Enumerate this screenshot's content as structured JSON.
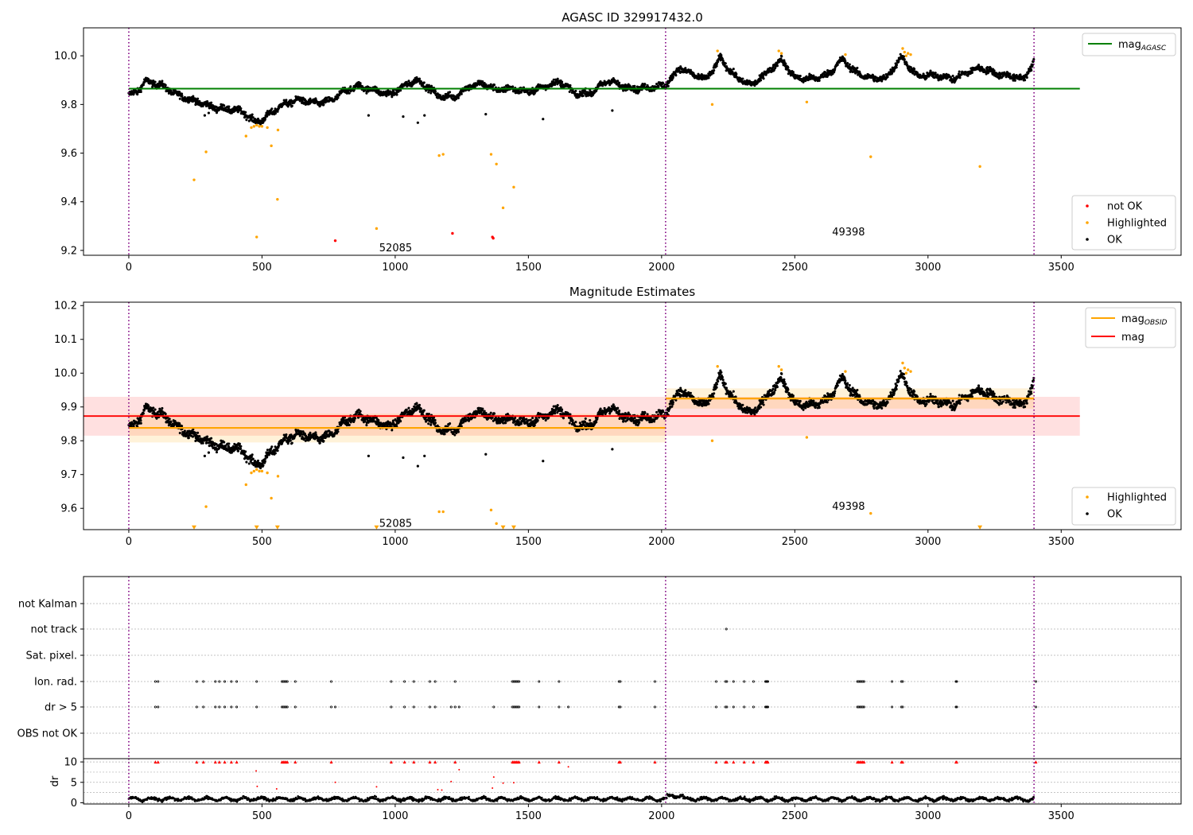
{
  "chart_data": [
    {
      "type": "scatter",
      "title": "AGASC ID 329917432.0",
      "xlabel": "",
      "ylabel": "",
      "xlim": [
        -170,
        3950
      ],
      "ylim": [
        9.18,
        10.115
      ],
      "xticks": [
        0,
        500,
        1000,
        1500,
        2000,
        2500,
        3000,
        3500
      ],
      "yticks": [
        9.2,
        9.4,
        9.6,
        9.8,
        10.0
      ],
      "ytick_labels": [
        "9.2",
        "9.4",
        "9.6",
        "9.8",
        "10.0"
      ],
      "grid": false,
      "obs_boundaries": [
        0,
        2015,
        3398
      ],
      "annotations": [
        {
          "text": "52085",
          "x": 940,
          "y": 9.21
        },
        {
          "text": "49398",
          "x": 2640,
          "y": 9.275
        }
      ],
      "reference_lines": [
        {
          "name": "mag",
          "name_sub": "AGASC",
          "y": 9.865,
          "x_range": [
            0,
            3570
          ],
          "color": "#008000"
        }
      ],
      "legends": [
        {
          "placement": "top-right",
          "entries": [
            {
              "label": "mag",
              "sub": "AGASC",
              "kind": "line",
              "color": "#008000"
            }
          ]
        },
        {
          "placement": "lower-right",
          "entries": [
            {
              "label": "not OK",
              "kind": "dot",
              "color": "#ff0000"
            },
            {
              "label": "Highlighted",
              "kind": "dot",
              "color": "#ffa500"
            },
            {
              "label": "OK",
              "kind": "dot",
              "color": "#000000"
            }
          ]
        }
      ],
      "series": [
        {
          "name": "not OK",
          "color": "#ff0000",
          "points": [
            [
              775,
              9.24
            ],
            [
              1215,
              9.27
            ],
            [
              1365,
              9.255
            ],
            [
              1368,
              9.25
            ]
          ]
        },
        {
          "name": "Highlighted",
          "color": "#ffa500",
          "points": [
            [
              245,
              9.49
            ],
            [
              290,
              9.605
            ],
            [
              440,
              9.67
            ],
            [
              460,
              9.705
            ],
            [
              470,
              9.71
            ],
            [
              480,
              9.715
            ],
            [
              490,
              9.71
            ],
            [
              500,
              9.71
            ],
            [
              480,
              9.255
            ],
            [
              520,
              9.705
            ],
            [
              535,
              9.63
            ],
            [
              558,
              9.41
            ],
            [
              560,
              9.695
            ],
            [
              930,
              9.29
            ],
            [
              1165,
              9.59
            ],
            [
              1180,
              9.595
            ],
            [
              1360,
              9.595
            ],
            [
              1380,
              9.555
            ],
            [
              1405,
              9.375
            ],
            [
              1445,
              9.46
            ],
            [
              2190,
              9.8
            ],
            [
              2210,
              10.02
            ],
            [
              2440,
              10.02
            ],
            [
              2450,
              10.01
            ],
            [
              2545,
              9.81
            ],
            [
              2690,
              10.005
            ],
            [
              2785,
              9.585
            ],
            [
              2905,
              10.03
            ],
            [
              2912,
              10.015
            ],
            [
              2918,
              10.0
            ],
            [
              2925,
              10.01
            ],
            [
              2935,
              10.005
            ],
            [
              3195,
              9.545
            ]
          ]
        }
      ],
      "ok_trend": [
        [
          0,
          9.84
        ],
        [
          30,
          9.85
        ],
        [
          60,
          9.895
        ],
        [
          120,
          9.88
        ],
        [
          180,
          9.84
        ],
        [
          260,
          9.81
        ],
        [
          330,
          9.785
        ],
        [
          380,
          9.78
        ],
        [
          430,
          9.77
        ],
        [
          470,
          9.73
        ],
        [
          500,
          9.735
        ],
        [
          540,
          9.77
        ],
        [
          580,
          9.8
        ],
        [
          640,
          9.82
        ],
        [
          700,
          9.805
        ],
        [
          760,
          9.815
        ],
        [
          800,
          9.85
        ],
        [
          860,
          9.875
        ],
        [
          920,
          9.86
        ],
        [
          980,
          9.84
        ],
        [
          1040,
          9.88
        ],
        [
          1080,
          9.9
        ],
        [
          1120,
          9.875
        ],
        [
          1160,
          9.835
        ],
        [
          1220,
          9.83
        ],
        [
          1280,
          9.875
        ],
        [
          1330,
          9.885
        ],
        [
          1380,
          9.86
        ],
        [
          1440,
          9.865
        ],
        [
          1500,
          9.85
        ],
        [
          1560,
          9.875
        ],
        [
          1620,
          9.895
        ],
        [
          1680,
          9.84
        ],
        [
          1740,
          9.85
        ],
        [
          1800,
          9.9
        ],
        [
          1850,
          9.875
        ],
        [
          1900,
          9.865
        ],
        [
          1960,
          9.87
        ],
        [
          2015,
          9.88
        ],
        [
          2030,
          9.9
        ],
        [
          2070,
          9.95
        ],
        [
          2120,
          9.92
        ],
        [
          2170,
          9.905
        ],
        [
          2220,
          9.99
        ],
        [
          2280,
          9.91
        ],
        [
          2340,
          9.88
        ],
        [
          2400,
          9.935
        ],
        [
          2450,
          9.985
        ],
        [
          2500,
          9.91
        ],
        [
          2560,
          9.905
        ],
        [
          2620,
          9.92
        ],
        [
          2680,
          9.985
        ],
        [
          2730,
          9.93
        ],
        [
          2780,
          9.91
        ],
        [
          2840,
          9.905
        ],
        [
          2900,
          9.995
        ],
        [
          2960,
          9.915
        ],
        [
          3000,
          9.92
        ],
        [
          3060,
          9.915
        ],
        [
          3100,
          9.905
        ],
        [
          3150,
          9.935
        ],
        [
          3200,
          9.95
        ],
        [
          3260,
          9.925
        ],
        [
          3320,
          9.915
        ],
        [
          3360,
          9.905
        ],
        [
          3398,
          9.975
        ]
      ],
      "ok_outliers": [
        [
          285,
          9.755
        ],
        [
          300,
          9.765
        ],
        [
          900,
          9.755
        ],
        [
          1030,
          9.75
        ],
        [
          1085,
          9.725
        ],
        [
          1110,
          9.755
        ],
        [
          1340,
          9.76
        ],
        [
          1555,
          9.74
        ],
        [
          1815,
          9.775
        ]
      ]
    },
    {
      "type": "scatter",
      "title": "Magnitude Estimates",
      "xlabel": "",
      "ylabel": "",
      "xlim": [
        -170,
        3950
      ],
      "ylim": [
        9.537,
        10.21
      ],
      "xticks": [
        0,
        500,
        1000,
        1500,
        2000,
        2500,
        3000,
        3500
      ],
      "yticks": [
        9.6,
        9.7,
        9.8,
        9.9,
        10.0,
        10.1,
        10.2
      ],
      "ytick_labels": [
        "9.6",
        "9.7",
        "9.8",
        "9.9",
        "10.0",
        "10.1",
        "10.2"
      ],
      "grid": false,
      "obs_boundaries": [
        0,
        2015,
        3398
      ],
      "annotations": [
        {
          "text": "52085",
          "x": 940,
          "y": 9.555
        },
        {
          "text": "49398",
          "x": 2640,
          "y": 9.605
        }
      ],
      "reference_lines": [
        {
          "name": "mag",
          "name_sub": "OBSID",
          "segments": [
            {
              "x": [
                0,
                2015
              ],
              "y": 9.838,
              "band": [
                9.795,
                9.88
              ]
            },
            {
              "x": [
                2015,
                3398
              ],
              "y": 9.925,
              "band": [
                9.895,
                9.955
              ]
            }
          ],
          "color": "#ffa500"
        },
        {
          "name": "mag",
          "y": 9.873,
          "x_range": [
            -170,
            3570
          ],
          "band": [
            9.815,
            9.93
          ],
          "color": "#ff0000"
        }
      ],
      "legends": [
        {
          "placement": "top-right",
          "entries": [
            {
              "label": "mag",
              "sub": "OBSID",
              "kind": "line",
              "color": "#ffa500"
            },
            {
              "label": "mag",
              "kind": "line",
              "color": "#ff0000"
            }
          ]
        },
        {
          "placement": "lower-right",
          "entries": [
            {
              "label": "Highlighted",
              "kind": "dot",
              "color": "#ffa500"
            },
            {
              "label": "OK",
              "kind": "dot",
              "color": "#000000"
            }
          ]
        }
      ],
      "series": [
        {
          "name": "Highlighted",
          "color": "#ffa500",
          "points": [
            [
              290,
              9.605
            ],
            [
              440,
              9.67
            ],
            [
              460,
              9.705
            ],
            [
              470,
              9.71
            ],
            [
              480,
              9.715
            ],
            [
              490,
              9.71
            ],
            [
              500,
              9.71
            ],
            [
              520,
              9.705
            ],
            [
              535,
              9.63
            ],
            [
              560,
              9.695
            ],
            [
              1165,
              9.59
            ],
            [
              1180,
              9.59
            ],
            [
              1360,
              9.595
            ],
            [
              1380,
              9.555
            ],
            [
              2190,
              9.8
            ],
            [
              2210,
              10.02
            ],
            [
              2440,
              10.02
            ],
            [
              2450,
              10.01
            ],
            [
              2545,
              9.81
            ],
            [
              2690,
              10.005
            ],
            [
              2785,
              9.585
            ],
            [
              2905,
              10.03
            ],
            [
              2912,
              10.015
            ],
            [
              2918,
              10.0
            ],
            [
              2925,
              10.01
            ],
            [
              2935,
              10.005
            ]
          ]
        },
        {
          "name": "Highlighted below range",
          "color": "#ffa500",
          "marker": "triangle-down",
          "points": [
            [
              245,
              9.54
            ],
            [
              480,
              9.54
            ],
            [
              558,
              9.54
            ],
            [
              930,
              9.54
            ],
            [
              1405,
              9.54
            ],
            [
              1445,
              9.54
            ],
            [
              3195,
              9.54
            ]
          ]
        }
      ]
    },
    {
      "type": "scatter",
      "title": "",
      "xlabel": "",
      "xlim": [
        -170,
        3950
      ],
      "xticks": [
        0,
        500,
        1000,
        1500,
        2000,
        2500,
        3000,
        3500
      ],
      "obs_boundaries": [
        0,
        2015,
        3398
      ],
      "flag_rows": [
        "not Kalman",
        "not track",
        "Sat. pixel.",
        "Ion. rad.",
        "dr > 5",
        "OBS not OK"
      ],
      "flag_points": {
        "not track": [
          2243
        ],
        "Ion. rad.": [
          100,
          110,
          255,
          280,
          325,
          340,
          360,
          385,
          405,
          480,
          575,
          580,
          585,
          590,
          595,
          625,
          760,
          985,
          1035,
          1070,
          1130,
          1150,
          1225,
          1440,
          1445,
          1450,
          1455,
          1460,
          1465,
          1540,
          1615,
          1840,
          1845,
          1975,
          2205,
          2240,
          2245,
          2270,
          2310,
          2345,
          2390,
          2393,
          2396,
          2399,
          2735,
          2740,
          2745,
          2750,
          2755,
          2760,
          2865,
          2900,
          2905,
          3105,
          3108,
          3405
        ],
        "dr > 5": [
          100,
          110,
          255,
          280,
          325,
          340,
          360,
          385,
          405,
          480,
          575,
          580,
          585,
          590,
          595,
          625,
          760,
          775,
          985,
          1035,
          1070,
          1130,
          1150,
          1210,
          1225,
          1240,
          1370,
          1440,
          1445,
          1450,
          1455,
          1460,
          1465,
          1540,
          1615,
          1650,
          1840,
          1845,
          1975,
          2205,
          2240,
          2245,
          2270,
          2310,
          2345,
          2390,
          2393,
          2396,
          2399,
          2735,
          2740,
          2745,
          2750,
          2755,
          2760,
          2865,
          2900,
          2905,
          3105,
          3108,
          3405
        ]
      },
      "dr_panel": {
        "ylabel": "dr",
        "ylim": [
          -0.3,
          10.8
        ],
        "yticks": [
          0,
          5,
          10
        ],
        "ytick_labels": [
          "0",
          "5",
          "10"
        ],
        "clipped_value": 10,
        "clipped_x": [
          100,
          110,
          255,
          280,
          325,
          340,
          360,
          385,
          405,
          575,
          580,
          585,
          590,
          595,
          625,
          760,
          985,
          1035,
          1070,
          1130,
          1150,
          1225,
          1440,
          1445,
          1450,
          1455,
          1460,
          1465,
          1540,
          1615,
          1840,
          1845,
          1975,
          2205,
          2240,
          2245,
          2270,
          2310,
          2345,
          2390,
          2393,
          2396,
          2399,
          2735,
          2740,
          2745,
          2750,
          2755,
          2760,
          2865,
          2900,
          2905,
          3105,
          3108,
          3405
        ],
        "scattered_red": [
          [
            478,
            7.8
          ],
          [
            482,
            4.0
          ],
          [
            555,
            3.4
          ],
          [
            775,
            5.0
          ],
          [
            930,
            3.9
          ],
          [
            1210,
            5.2
          ],
          [
            1240,
            8.1
          ],
          [
            1160,
            3.2
          ],
          [
            1175,
            3.1
          ],
          [
            1365,
            3.6
          ],
          [
            1370,
            6.3
          ],
          [
            1405,
            4.8
          ],
          [
            1650,
            8.8
          ],
          [
            1445,
            4.9
          ]
        ]
      }
    }
  ]
}
